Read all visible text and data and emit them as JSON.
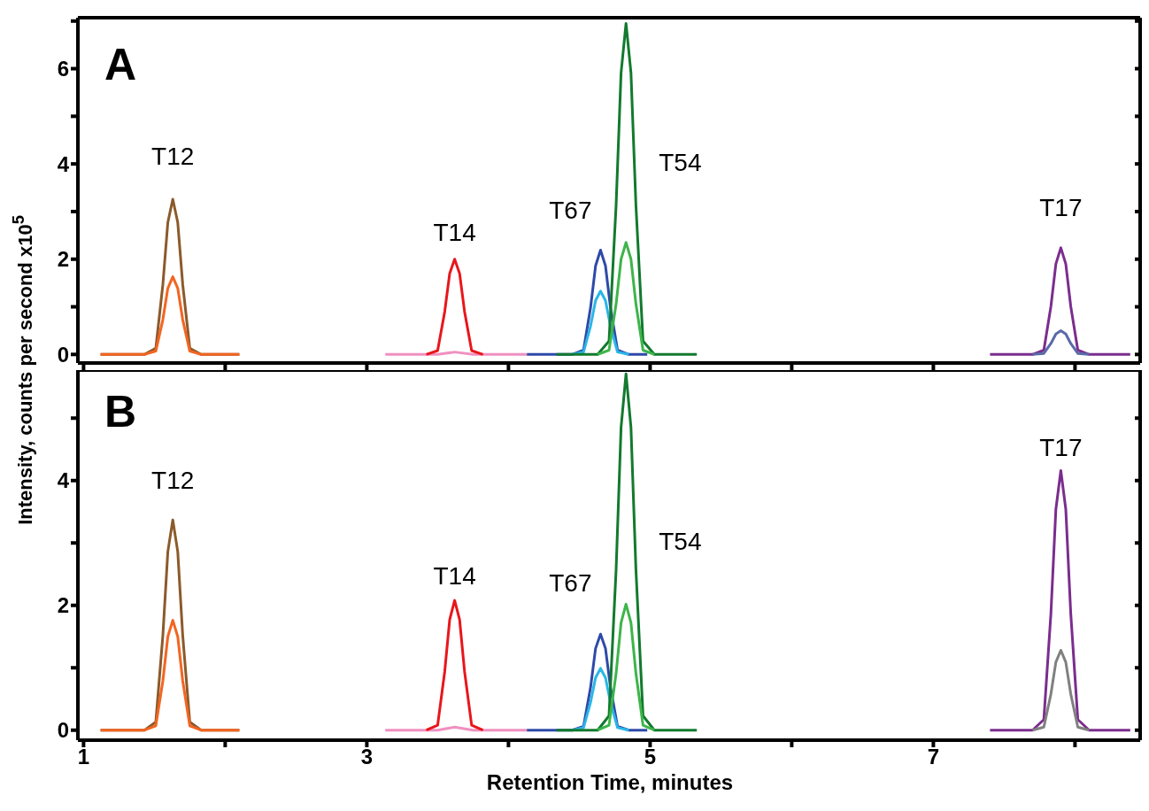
{
  "chart_data": [
    {
      "type": "line",
      "ylabel": "Intensity, counts per second x10$^{5}$",
      "marker": "none",
      "tick_labels": "y",
      "annotations": [
        "A",
        {
          "text": "T12",
          "x": 1.63,
          "y": 3.26
        },
        {
          "text": "T14",
          "x": 3.62,
          "y": 2.0
        },
        {
          "text": "T67",
          "x": 4.65,
          "y": 2.19
        },
        {
          "text": "T54",
          "x": 4.9,
          "y": 3.13
        },
        {
          "text": "T17",
          "x": 7.9,
          "y": 2.24
        }
      ],
      "xlim": [
        0.96,
        8.46
      ],
      "xticks": [
        1,
        {
          "value": 2,
          "label": null
        },
        3,
        {
          "value": 4,
          "label": null
        },
        5,
        {
          "value": 6,
          "label": null
        },
        7,
        {
          "value": 8,
          "label": null
        }
      ],
      "ylim": [
        -0.18,
        7.07
      ],
      "yticks": [
        0,
        {
          "value": 1,
          "label": null
        },
        2,
        {
          "value": 3,
          "label": null
        },
        4,
        {
          "value": 5,
          "label": null
        },
        6,
        {
          "value": 7,
          "label": null
        }
      ],
      "series": [
        {
          "color": "#8b5a2b",
          "x": [
            1.12,
            1.43,
            1.51,
            1.56,
            1.595,
            1.63,
            1.665,
            1.7,
            1.75,
            1.83,
            2.1
          ],
          "values": [
            0,
            0,
            0.13,
            1.47,
            2.77,
            3.26,
            2.77,
            1.47,
            0.13,
            0,
            0
          ]
        },
        {
          "color": "#f26522",
          "x": [
            1.12,
            1.43,
            1.51,
            1.56,
            1.595,
            1.63,
            1.665,
            1.7,
            1.75,
            1.83,
            2.1
          ],
          "values": [
            0,
            0,
            0.07,
            0.73,
            1.39,
            1.63,
            1.39,
            0.73,
            0.07,
            0,
            0
          ]
        },
        {
          "color": "#f090c0",
          "x": [
            3.13,
            3.5,
            3.62,
            3.75,
            4.13
          ],
          "values": [
            0,
            0,
            0.05,
            0,
            0
          ]
        },
        {
          "color": "#e8161b",
          "x": [
            3.42,
            3.5,
            3.55,
            3.585,
            3.62,
            3.655,
            3.69,
            3.74,
            3.82
          ],
          "values": [
            0,
            0.08,
            0.9,
            1.7,
            2.0,
            1.7,
            0.9,
            0.08,
            0
          ]
        },
        {
          "color": "#2e4aa8",
          "x": [
            4.13,
            4.45,
            4.53,
            4.58,
            4.615,
            4.65,
            4.685,
            4.72,
            4.77,
            4.85,
            4.98
          ],
          "values": [
            0,
            0,
            0.09,
            0.99,
            1.86,
            2.19,
            1.86,
            0.99,
            0.09,
            0,
            0
          ]
        },
        {
          "color": "#29b6e8",
          "x": [
            4.45,
            4.53,
            4.58,
            4.615,
            4.65,
            4.685,
            4.72,
            4.77,
            4.85
          ],
          "values": [
            0,
            0.05,
            0.6,
            1.13,
            1.33,
            1.13,
            0.6,
            0.05,
            0
          ]
        },
        {
          "color": "#127a2e",
          "x": [
            4.34,
            4.63,
            4.71,
            4.76,
            4.795,
            4.83,
            4.865,
            4.9,
            4.95,
            5.03,
            5.33
          ],
          "values": [
            0,
            0,
            0.28,
            3.13,
            5.91,
            6.95,
            5.91,
            3.13,
            0.28,
            0,
            0
          ]
        },
        {
          "color": "#3db54a",
          "x": [
            4.63,
            4.71,
            4.76,
            4.795,
            4.83,
            4.865,
            4.9,
            4.95,
            5.03
          ],
          "values": [
            0,
            0.09,
            1.06,
            2.0,
            2.35,
            2.0,
            1.06,
            0.09,
            0
          ]
        },
        {
          "color": "#7b2d8e",
          "x": [
            7.4,
            7.7,
            7.78,
            7.83,
            7.865,
            7.9,
            7.935,
            7.97,
            8.02,
            8.1,
            8.39
          ],
          "values": [
            0,
            0,
            0.09,
            1.01,
            1.9,
            2.24,
            1.9,
            1.01,
            0.09,
            0,
            0
          ]
        },
        {
          "color": "#5a6aa8",
          "x": [
            7.7,
            7.78,
            7.83,
            7.865,
            7.9,
            7.935,
            7.97,
            8.02,
            8.1
          ],
          "values": [
            0,
            0.02,
            0.23,
            0.43,
            0.5,
            0.43,
            0.23,
            0.02,
            0
          ]
        }
      ]
    },
    {
      "type": "line",
      "xlabel": "Retention Time, minutes",
      "marker": "none",
      "annotations": [
        "B",
        {
          "text": "T12",
          "x": 1.63,
          "y": 3.37
        },
        {
          "text": "T14",
          "x": 3.62,
          "y": 2.08
        },
        {
          "text": "T67",
          "x": 4.65,
          "y": 1.54
        },
        {
          "text": "T54",
          "x": 4.9,
          "y": 2.57
        },
        {
          "text": "T17",
          "x": 7.9,
          "y": 4.16
        }
      ],
      "xlim": [
        0.96,
        8.46
      ],
      "xticks": [
        1,
        {
          "value": 2,
          "label": null
        },
        3,
        {
          "value": 4,
          "label": null
        },
        5,
        {
          "value": 6,
          "label": null
        },
        7,
        {
          "value": 8,
          "label": null
        }
      ],
      "ylim": [
        -0.16,
        5.77
      ],
      "yticks": [
        0,
        {
          "value": 1,
          "label": null
        },
        2,
        {
          "value": 3,
          "label": null
        },
        4,
        {
          "value": 5,
          "label": null
        }
      ],
      "series": [
        {
          "color": "#8b5a2b",
          "x": [
            1.12,
            1.43,
            1.51,
            1.56,
            1.595,
            1.63,
            1.665,
            1.7,
            1.75,
            1.83,
            2.1
          ],
          "values": [
            0,
            0,
            0.13,
            1.52,
            2.86,
            3.37,
            2.86,
            1.52,
            0.13,
            0,
            0
          ]
        },
        {
          "color": "#f26522",
          "x": [
            1.12,
            1.43,
            1.51,
            1.56,
            1.595,
            1.63,
            1.665,
            1.7,
            1.75,
            1.83,
            2.1
          ],
          "values": [
            0,
            0,
            0.07,
            0.79,
            1.5,
            1.76,
            1.5,
            0.79,
            0.07,
            0,
            0
          ]
        },
        {
          "color": "#f090c0",
          "x": [
            3.13,
            3.5,
            3.62,
            3.75,
            4.13
          ],
          "values": [
            0,
            0,
            0.05,
            0,
            0
          ]
        },
        {
          "color": "#e8161b",
          "x": [
            3.42,
            3.5,
            3.55,
            3.585,
            3.62,
            3.655,
            3.69,
            3.74,
            3.82
          ],
          "values": [
            0,
            0.08,
            0.94,
            1.77,
            2.08,
            1.77,
            0.94,
            0.08,
            0
          ]
        },
        {
          "color": "#2e4aa8",
          "x": [
            4.13,
            4.45,
            4.53,
            4.58,
            4.615,
            4.65,
            4.685,
            4.72,
            4.77,
            4.85,
            4.98
          ],
          "values": [
            0,
            0,
            0.06,
            0.69,
            1.31,
            1.54,
            1.31,
            0.69,
            0.06,
            0,
            0
          ]
        },
        {
          "color": "#29b6e8",
          "x": [
            4.45,
            4.53,
            4.58,
            4.615,
            4.65,
            4.685,
            4.72,
            4.77,
            4.85
          ],
          "values": [
            0,
            0.04,
            0.45,
            0.84,
            0.99,
            0.84,
            0.45,
            0.04,
            0
          ]
        },
        {
          "color": "#127a2e",
          "x": [
            4.34,
            4.63,
            4.71,
            4.76,
            4.795,
            4.83,
            4.865,
            4.9,
            4.95,
            5.03,
            5.33
          ],
          "values": [
            0,
            0,
            0.23,
            2.57,
            4.85,
            5.71,
            4.85,
            2.57,
            0.23,
            0,
            0
          ]
        },
        {
          "color": "#3db54a",
          "x": [
            4.63,
            4.71,
            4.76,
            4.795,
            4.83,
            4.865,
            4.9,
            4.95,
            5.03
          ],
          "values": [
            0,
            0.08,
            0.91,
            1.72,
            2.02,
            1.72,
            0.91,
            0.08,
            0
          ]
        },
        {
          "color": "#7b2d8e",
          "x": [
            7.4,
            7.7,
            7.78,
            7.83,
            7.865,
            7.9,
            7.935,
            7.97,
            8.02,
            8.1,
            8.39
          ],
          "values": [
            0,
            0,
            0.17,
            1.87,
            3.54,
            4.16,
            3.54,
            1.87,
            0.17,
            0,
            0
          ]
        },
        {
          "color": "#808080",
          "x": [
            7.7,
            7.78,
            7.83,
            7.865,
            7.9,
            7.935,
            7.97,
            8.02,
            8.1
          ],
          "values": [
            0,
            0.05,
            0.58,
            1.09,
            1.28,
            1.09,
            0.58,
            0.05,
            0
          ]
        }
      ]
    }
  ]
}
